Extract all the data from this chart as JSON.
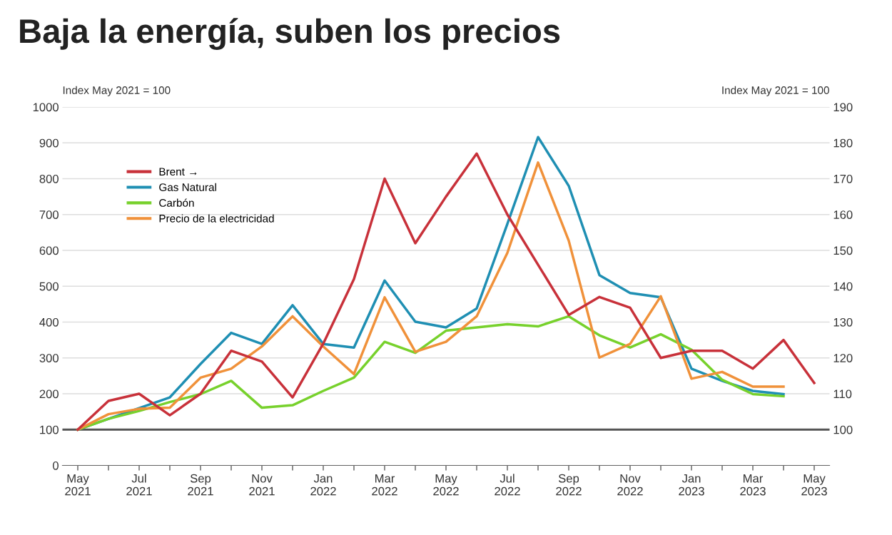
{
  "chart_data": {
    "type": "line",
    "title": "Baja la energía, suben los precios",
    "ylabel": "Index May 2021 = 100",
    "y2label": "Index May 2021 = 100",
    "categories": [
      "May\n2021",
      null,
      "Jul\n2021",
      null,
      "Sep\n2021",
      null,
      "Nov\n2021",
      null,
      "Jan\n2022",
      null,
      "Mar\n2022",
      null,
      "May\n2022",
      null,
      "Jul\n2022",
      null,
      "Sep\n2022",
      null,
      "Nov\n2022",
      null,
      "Jan\n2023",
      null,
      "Mar\n2023",
      null,
      "May\n2023"
    ],
    "series": [
      {
        "name": "Brent →",
        "color": "#c8313a",
        "axis": "y2",
        "values": [
          100,
          108,
          110,
          104,
          110,
          122,
          119,
          109,
          124,
          142,
          170,
          152,
          165,
          177,
          160,
          146,
          132,
          137,
          134,
          120,
          122,
          122,
          117,
          125,
          113
        ]
      },
      {
        "name": "Gas Natural",
        "color": "#1f8fb3",
        "values": [
          100,
          130,
          160,
          190,
          283,
          370,
          339,
          447,
          339,
          329,
          516,
          401,
          385,
          438,
          674,
          916,
          780,
          531,
          481,
          469,
          270,
          236,
          208,
          199,
          null
        ]
      },
      {
        "name": "Carbón",
        "color": "#77d12c",
        "values": [
          100,
          130,
          152,
          177,
          199,
          236,
          161,
          168,
          208,
          245,
          345,
          314,
          376,
          385,
          394,
          388,
          416,
          363,
          329,
          366,
          323,
          239,
          199,
          193,
          null
        ]
      },
      {
        "name": "Precio de la electricidad",
        "color": "#f0913a",
        "values": [
          100,
          143,
          158,
          161,
          245,
          270,
          332,
          416,
          332,
          255,
          469,
          317,
          345,
          416,
          593,
          845,
          627,
          301,
          339,
          472,
          242,
          261,
          220,
          220,
          null
        ]
      }
    ],
    "ylim": [
      0,
      1000
    ],
    "yticks": [
      0,
      100,
      200,
      300,
      400,
      500,
      600,
      700,
      800,
      900,
      1000
    ],
    "y2lim": [
      90,
      190
    ],
    "y2ticks": [
      100,
      110,
      120,
      130,
      140,
      150,
      160,
      170,
      180,
      190
    ],
    "ref_lines": [
      {
        "axis": "y",
        "value": 100,
        "color": "#555555"
      }
    ],
    "grid": "y",
    "legend": "top left",
    "marker": "none",
    "line_style": "solid"
  }
}
